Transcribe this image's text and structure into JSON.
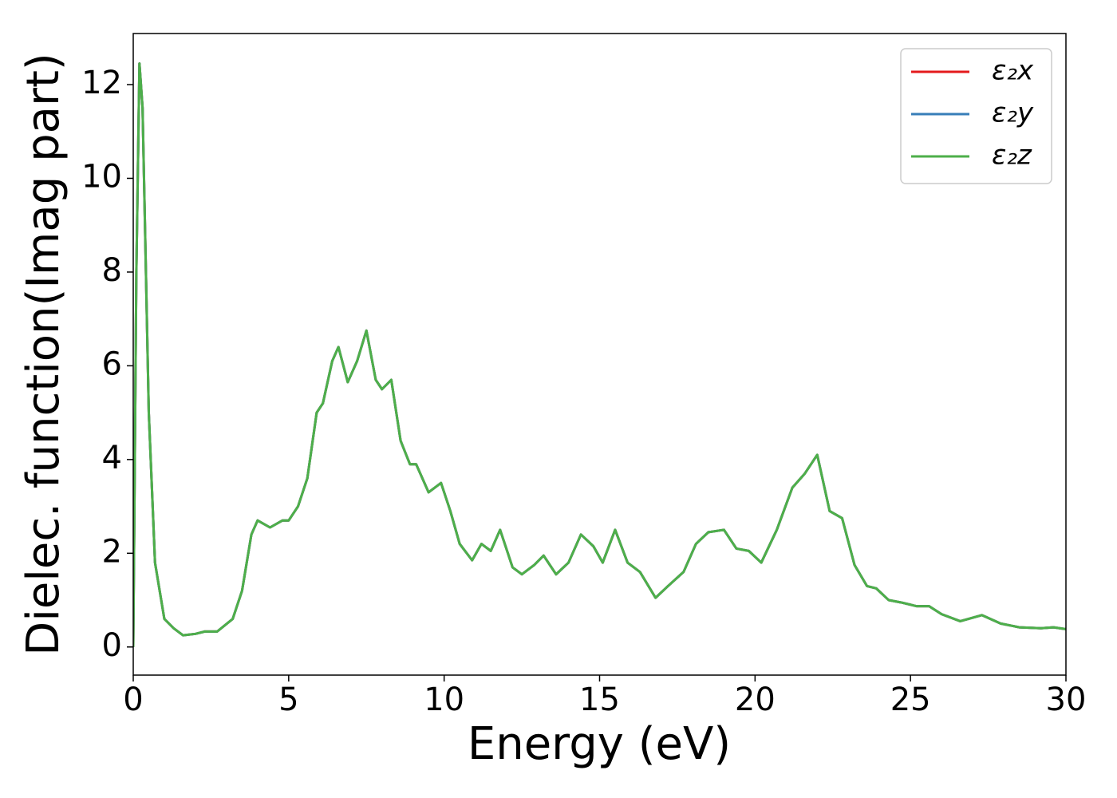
{
  "chart_data": {
    "type": "line",
    "xlabel": "Energy (eV)",
    "ylabel": "Dielec. function(Imag part)",
    "x": [
      0,
      0.1,
      0.2,
      0.3,
      0.5,
      0.7,
      1.0,
      1.3,
      1.6,
      2.0,
      2.3,
      2.7,
      3.2,
      3.5,
      3.8,
      4.0,
      4.4,
      4.8,
      5.0,
      5.3,
      5.6,
      5.9,
      6.1,
      6.4,
      6.6,
      6.9,
      7.2,
      7.5,
      7.8,
      8.0,
      8.3,
      8.6,
      8.9,
      9.1,
      9.5,
      9.9,
      10.2,
      10.5,
      10.9,
      11.2,
      11.5,
      11.8,
      12.2,
      12.5,
      12.9,
      13.2,
      13.6,
      14.0,
      14.4,
      14.8,
      15.1,
      15.5,
      15.9,
      16.3,
      16.8,
      17.2,
      17.7,
      18.1,
      18.5,
      19.0,
      19.4,
      19.8,
      20.2,
      20.7,
      21.2,
      21.6,
      22.0,
      22.4,
      22.8,
      23.2,
      23.6,
      23.9,
      24.3,
      24.7,
      25.2,
      25.6,
      26.0,
      26.6,
      27.3,
      27.9,
      28.5,
      29.2,
      29.6,
      30.0
    ],
    "series": [
      {
        "name": "ε₂x",
        "color": "#e41a1c",
        "values": [
          0,
          8,
          12.45,
          11.5,
          5,
          1.8,
          0.6,
          0.4,
          0.25,
          0.28,
          0.33,
          0.33,
          0.6,
          1.2,
          2.4,
          2.7,
          2.55,
          2.7,
          2.7,
          3.0,
          3.6,
          5.0,
          5.2,
          6.1,
          6.4,
          5.65,
          6.1,
          6.75,
          5.7,
          5.5,
          5.7,
          4.4,
          3.9,
          3.9,
          3.3,
          3.5,
          2.9,
          2.2,
          1.85,
          2.2,
          2.05,
          2.5,
          1.7,
          1.55,
          1.75,
          1.95,
          1.55,
          1.8,
          2.4,
          2.15,
          1.8,
          2.5,
          1.8,
          1.6,
          1.05,
          1.3,
          1.6,
          2.2,
          2.45,
          2.5,
          2.1,
          2.05,
          1.8,
          2.5,
          3.4,
          3.7,
          4.1,
          2.9,
          2.75,
          1.75,
          1.3,
          1.25,
          1.0,
          0.95,
          0.87,
          0.87,
          0.7,
          0.55,
          0.68,
          0.5,
          0.42,
          0.4,
          0.42,
          0.38
        ]
      },
      {
        "name": "ε₂y",
        "color": "#377eb8",
        "values": [
          0,
          8,
          12.45,
          11.5,
          5,
          1.8,
          0.6,
          0.4,
          0.25,
          0.28,
          0.33,
          0.33,
          0.6,
          1.2,
          2.4,
          2.7,
          2.55,
          2.7,
          2.7,
          3.0,
          3.6,
          5.0,
          5.2,
          6.1,
          6.4,
          5.65,
          6.1,
          6.75,
          5.7,
          5.5,
          5.7,
          4.4,
          3.9,
          3.9,
          3.3,
          3.5,
          2.9,
          2.2,
          1.85,
          2.2,
          2.05,
          2.5,
          1.7,
          1.55,
          1.75,
          1.95,
          1.55,
          1.8,
          2.4,
          2.15,
          1.8,
          2.5,
          1.8,
          1.6,
          1.05,
          1.3,
          1.6,
          2.2,
          2.45,
          2.5,
          2.1,
          2.05,
          1.8,
          2.5,
          3.4,
          3.7,
          4.1,
          2.9,
          2.75,
          1.75,
          1.3,
          1.25,
          1.0,
          0.95,
          0.87,
          0.87,
          0.7,
          0.55,
          0.68,
          0.5,
          0.42,
          0.4,
          0.42,
          0.38
        ]
      },
      {
        "name": "ε₂z",
        "color": "#4daf4a",
        "values": [
          0,
          8,
          12.45,
          11.5,
          5,
          1.8,
          0.6,
          0.4,
          0.25,
          0.28,
          0.33,
          0.33,
          0.6,
          1.2,
          2.4,
          2.7,
          2.55,
          2.7,
          2.7,
          3.0,
          3.6,
          5.0,
          5.2,
          6.1,
          6.4,
          5.65,
          6.1,
          6.75,
          5.7,
          5.5,
          5.7,
          4.4,
          3.9,
          3.9,
          3.3,
          3.5,
          2.9,
          2.2,
          1.85,
          2.2,
          2.05,
          2.5,
          1.7,
          1.55,
          1.75,
          1.95,
          1.55,
          1.8,
          2.4,
          2.15,
          1.8,
          2.5,
          1.8,
          1.6,
          1.05,
          1.3,
          1.6,
          2.2,
          2.45,
          2.5,
          2.1,
          2.05,
          1.8,
          2.5,
          3.4,
          3.7,
          4.1,
          2.9,
          2.75,
          1.75,
          1.3,
          1.25,
          1.0,
          0.95,
          0.87,
          0.87,
          0.7,
          0.55,
          0.68,
          0.5,
          0.42,
          0.4,
          0.42,
          0.38
        ]
      }
    ],
    "xlim": [
      0,
      30
    ],
    "xticks": [
      0,
      5,
      10,
      15,
      20,
      25,
      30
    ],
    "ylim": [
      -0.6,
      13.09
    ],
    "yticks": [
      0,
      2,
      4,
      6,
      8,
      10,
      12
    ],
    "legend": "upper right",
    "grid": false
  }
}
